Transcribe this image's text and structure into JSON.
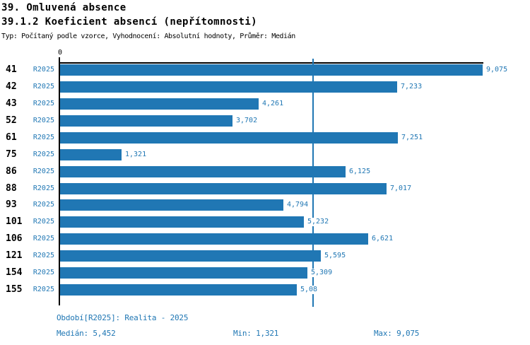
{
  "header": {
    "title": "39. Omluvená absence",
    "subtitle": "39.1.2 Koeficient absencí (nepřítomnosti)",
    "meta": "Typ: Počítaný podle vzorce, Vyhodnocení: Absolutní hodnoty, Průměr: Medián"
  },
  "chart_data": {
    "type": "bar",
    "orientation": "horizontal",
    "title": "39.1.2 Koeficient absencí (nepřítomnosti)",
    "categories": [
      "41",
      "42",
      "43",
      "52",
      "61",
      "75",
      "86",
      "88",
      "93",
      "101",
      "106",
      "121",
      "154",
      "155"
    ],
    "series_label": "R2025",
    "values": [
      9.075,
      7.233,
      4.261,
      3.702,
      7.251,
      1.321,
      6.125,
      7.017,
      4.794,
      5.232,
      6.621,
      5.595,
      5.309,
      5.08
    ],
    "value_labels": [
      "9,075",
      "7,233",
      "4,261",
      "3,702",
      "7,251",
      "1,321",
      "6,125",
      "7,017",
      "4,794",
      "5,232",
      "6,621",
      "5,595",
      "5,309",
      "5,08"
    ],
    "xlim": [
      0,
      9.075
    ],
    "zero_label": "0",
    "median_value": 5.452,
    "grid": false,
    "legend": "none",
    "bar_color": "#2077B4",
    "median_line_color": "#2077B4",
    "axis_color": "#000000"
  },
  "footer": {
    "period": "Období[R2025]: Realita - 2025",
    "median": "Medián: 5,452",
    "min": "Min: 1,321",
    "max": "Max: 9,075"
  }
}
